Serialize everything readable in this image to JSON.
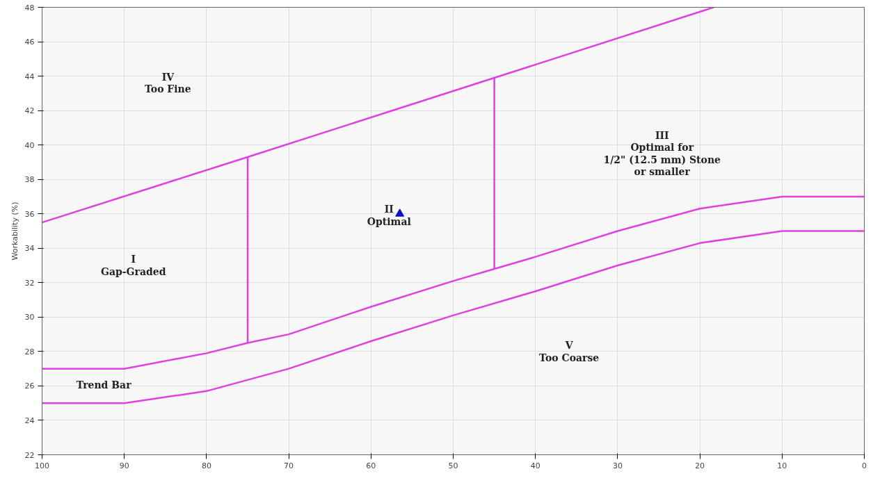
{
  "chart_data": {
    "type": "line",
    "ylabel": "Workability (%)",
    "xlim": [
      100,
      0
    ],
    "xticks": [
      100,
      90,
      80,
      70,
      60,
      50,
      40,
      30,
      20,
      10,
      0
    ],
    "ylim": [
      22,
      48
    ],
    "yticks": [
      22,
      24,
      26,
      28,
      30,
      32,
      34,
      36,
      38,
      40,
      42,
      44,
      46,
      48
    ],
    "grid": true,
    "line_style": "solid",
    "series": [
      {
        "color": "#e040e0",
        "x": [
          100,
          75,
          45,
          18.3
        ],
        "values": [
          35.5,
          39.3,
          43.9,
          48
        ]
      },
      {
        "color": "#e040e0",
        "x": [
          100,
          90,
          80,
          75,
          70,
          60,
          50,
          45,
          40,
          30,
          20,
          10,
          0
        ],
        "values": [
          27,
          27,
          27.9,
          28.5,
          29,
          30.6,
          32.1,
          32.8,
          33.5,
          35,
          36.3,
          37,
          37
        ]
      },
      {
        "color": "#e040e0",
        "x": [
          100,
          90,
          80,
          70,
          60,
          50,
          40,
          30,
          20,
          10,
          0
        ],
        "values": [
          25,
          25,
          25.7,
          27,
          28.6,
          30.1,
          31.5,
          33,
          34.3,
          35,
          35
        ]
      },
      {
        "color": "#e040e0",
        "x": [
          75,
          75
        ],
        "values": [
          28.5,
          39.3
        ]
      },
      {
        "color": "#e040e0",
        "x": [
          45,
          45
        ],
        "values": [
          32.8,
          43.9
        ]
      },
      {
        "type": "scatter",
        "color": "#1010c0",
        "marker": "triangle",
        "x": [
          56.5
        ],
        "values": [
          36.0
        ]
      }
    ],
    "annotations": [
      "IV\nToo Fine",
      "I\nGap-Graded",
      "II\nOptimal",
      "III\nOptimal for\n1/2\" (12.5 mm) Stone\nor smaller",
      "V\nToo Coarse",
      "Trend Bar"
    ]
  }
}
